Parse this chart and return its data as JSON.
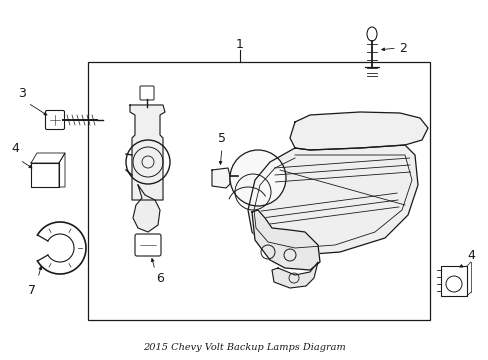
{
  "title": "2015 Chevy Volt Backup Lamps Diagram",
  "bg_color": "#ffffff",
  "line_color": "#1a1a1a",
  "figsize": [
    4.89,
    3.6
  ],
  "dpi": 100
}
